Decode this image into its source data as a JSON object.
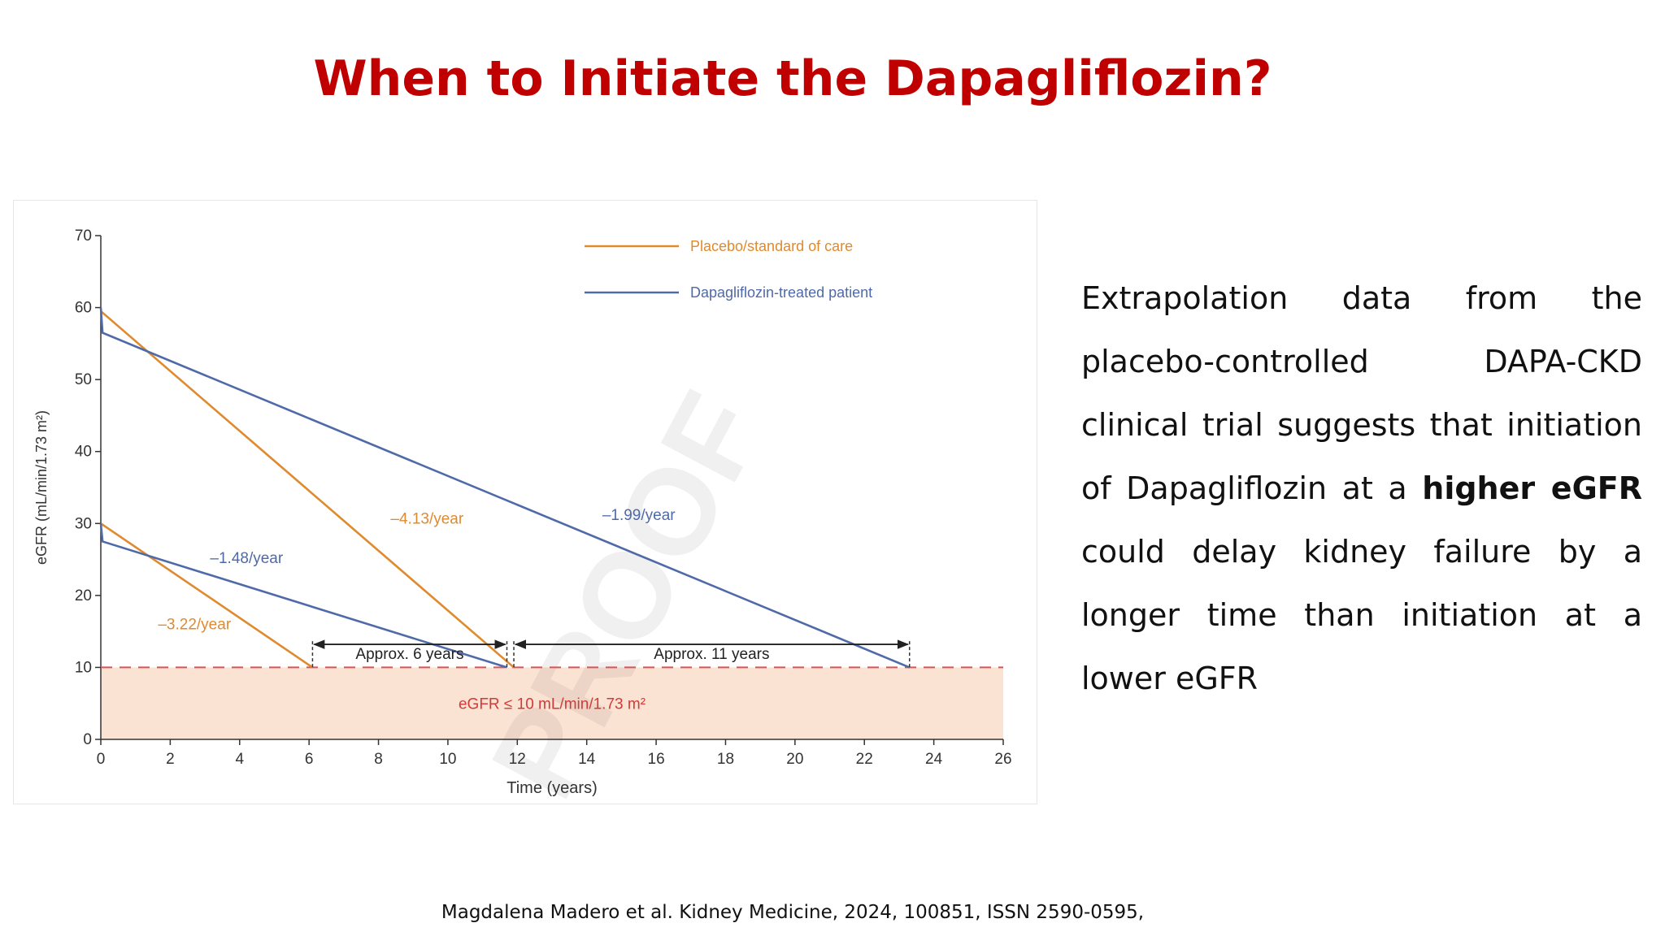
{
  "slide": {
    "title": "When to Initiate the Dapagliflozin?",
    "paragraph_before": "Extrapolation data from the placebo-controlled DAPA-CKD clinical trial suggests that initiation of Dapagliflozin at a ",
    "paragraph_bold": "higher eGFR",
    "paragraph_after": " could delay kidney failure by a longer time than initiation at a lower eGFR",
    "citation": "Magdalena Madero et al. Kidney Medicine, 2024, 100851, ISSN 2590-0595,"
  },
  "colors": {
    "placebo": "#e08a2e",
    "dapagliflozin": "#4f6aa8",
    "threshold_line": "#d9535a",
    "threshold_fill": "#fbe3d3",
    "threshold_text": "#d23a3a",
    "title": "#c00000"
  },
  "chart_data": {
    "type": "line",
    "xlabel": "Time (years)",
    "ylabel": "eGFR (mL/min/1.73 m²)",
    "xlim": [
      0,
      26
    ],
    "ylim": [
      0,
      70
    ],
    "x_ticks": [
      0,
      2,
      4,
      6,
      8,
      10,
      12,
      14,
      16,
      18,
      20,
      22,
      24,
      26
    ],
    "y_ticks": [
      0,
      10,
      20,
      30,
      40,
      50,
      60,
      70
    ],
    "grid": false,
    "legend_position": "top-right",
    "series": [
      {
        "name": "Placebo/standard of care",
        "group": "placebo",
        "points": [
          [
            0,
            59.5
          ],
          [
            11.9,
            10
          ]
        ],
        "label": "–4.13/year",
        "label_at": [
          9.4,
          30
        ]
      },
      {
        "name": "Dapagliflozin-treated patient",
        "group": "dapagliflozin",
        "points": [
          [
            0,
            60
          ],
          [
            0.05,
            56.5
          ],
          [
            23.3,
            10
          ]
        ],
        "label": "–1.99/year",
        "label_at": [
          15.5,
          30.5
        ]
      },
      {
        "name": "Placebo/standard of care",
        "group": "placebo",
        "points": [
          [
            0,
            30
          ],
          [
            6.1,
            10
          ]
        ],
        "label": "–3.22/year",
        "label_at": [
          2.7,
          15.3
        ]
      },
      {
        "name": "Dapagliflozin-treated patient",
        "group": "dapagliflozin",
        "points": [
          [
            0,
            30
          ],
          [
            0.05,
            27.5
          ],
          [
            11.7,
            10
          ]
        ],
        "label": "–1.48/year",
        "label_at": [
          4.2,
          24.5
        ]
      }
    ],
    "threshold": {
      "y": 10,
      "label": "eGFR ≤ 10 mL/min/1.73 m²"
    },
    "annotations": [
      {
        "text": "Approx. 6 years",
        "x_start": 6.1,
        "x_end": 11.7,
        "y": 13.2
      },
      {
        "text": "Approx. 11 years",
        "x_start": 11.9,
        "x_end": 23.3,
        "y": 13.2
      }
    ],
    "watermark": "PROOF"
  }
}
